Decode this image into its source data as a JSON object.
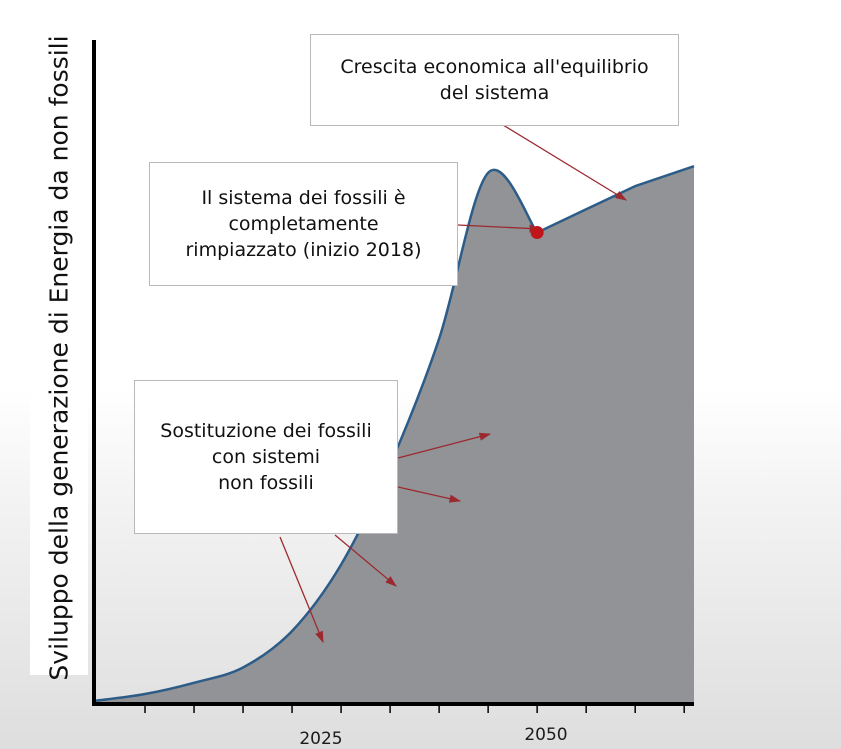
{
  "chart_data": {
    "type": "area",
    "title": "",
    "ylabel": "Sviluppo della generazione di Energia da non fossili",
    "xlabel": "",
    "x_ticks_labeled": [
      "2025",
      "2050"
    ],
    "xlim": [
      2005,
      2066
    ],
    "ylim": [
      0,
      100
    ],
    "grid": false,
    "series": [
      {
        "x": [
          2005,
          2010,
          2015,
          2020,
          2025,
          2030,
          2035,
          2040,
          2045,
          2048,
          2050,
          2055,
          2060,
          2066
        ],
        "values": [
          0.5,
          1.5,
          3.2,
          5.5,
          11,
          21,
          36,
          55,
          80,
          94,
          71,
          74.5,
          78,
          81
        ],
        "fill_color": "#929396",
        "line_color": "#2c5c88"
      }
    ],
    "highlight_point": {
      "x": 2050,
      "y": 71,
      "color": "#c0151a"
    },
    "annotations": [
      {
        "id": "equilibrium",
        "text": "Crescita economica all'equilibrio\ndel sistema"
      },
      {
        "id": "replaced",
        "text": "Il sistema dei fossili è\ncompletamente\nrimpiazzato (inizio 2018)"
      },
      {
        "id": "substitution",
        "text": "Sostituzione dei fossili\ncon sistemi\nnon fossili"
      }
    ]
  },
  "colors": {
    "axis": "#000000",
    "arrow": "#9b2a30",
    "box_border": "#b9b9b9"
  }
}
